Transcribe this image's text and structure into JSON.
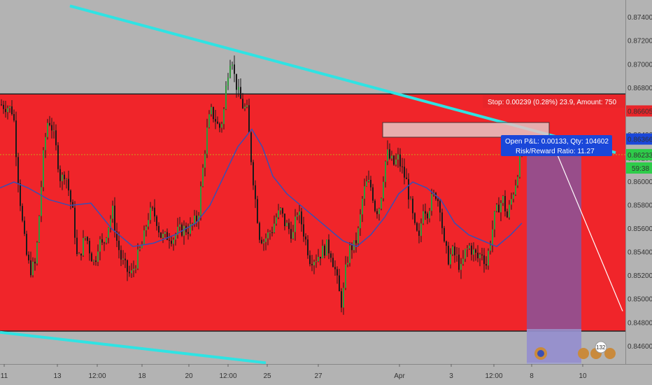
{
  "chart_data": {
    "type": "candlestick",
    "title": "",
    "y_axis": {
      "position": "right",
      "range": [
        0.8445,
        0.8755
      ],
      "tick_labels": [
        "0.87400",
        "0.87200",
        "0.87000",
        "0.86800",
        "0.86600",
        "0.86400",
        "0.86200",
        "0.86000",
        "0.85800",
        "0.85600",
        "0.85400",
        "0.85200",
        "0.85000",
        "0.84800",
        "0.84600"
      ]
    },
    "x_axis": {
      "tick_labels": [
        "11",
        "13",
        "12:00",
        "18",
        "20",
        "12:00",
        "25",
        "27",
        "Apr",
        "3",
        "12:00",
        "8",
        "10"
      ]
    },
    "series": [
      {
        "name": "",
        "type": "ohlc",
        "close_path": [
          [
            0,
            0.8666
          ],
          [
            10,
            0.8664
          ],
          [
            18,
            0.866
          ],
          [
            24,
            0.861
          ],
          [
            30,
            0.857
          ],
          [
            36,
            0.854
          ],
          [
            42,
            0.8525
          ],
          [
            50,
            0.853
          ],
          [
            56,
            0.858
          ],
          [
            62,
            0.863
          ],
          [
            68,
            0.8655
          ],
          [
            74,
            0.8645
          ],
          [
            80,
            0.8625
          ],
          [
            86,
            0.86
          ],
          [
            92,
            0.861
          ],
          [
            98,
            0.859
          ],
          [
            104,
            0.857
          ],
          [
            110,
            0.853
          ],
          [
            116,
            0.8545
          ],
          [
            122,
            0.8555
          ],
          [
            128,
            0.854
          ],
          [
            134,
            0.853
          ],
          [
            140,
            0.855
          ],
          [
            146,
            0.8545
          ],
          [
            152,
            0.856
          ],
          [
            160,
            0.8575
          ],
          [
            166,
            0.855
          ],
          [
            172,
            0.8535
          ],
          [
            180,
            0.8525
          ],
          [
            186,
            0.852
          ],
          [
            192,
            0.853
          ],
          [
            198,
            0.854
          ],
          [
            204,
            0.855
          ],
          [
            210,
            0.857
          ],
          [
            216,
            0.8575
          ],
          [
            222,
            0.857
          ],
          [
            228,
            0.8555
          ],
          [
            234,
            0.8552
          ],
          [
            240,
            0.8555
          ],
          [
            246,
            0.8552
          ],
          [
            254,
            0.8558
          ],
          [
            262,
            0.856
          ],
          [
            270,
            0.856
          ],
          [
            276,
            0.8565
          ],
          [
            282,
            0.857
          ],
          [
            288,
            0.8605
          ],
          [
            294,
            0.864
          ],
          [
            300,
            0.866
          ],
          [
            306,
            0.8655
          ],
          [
            312,
            0.8645
          ],
          [
            318,
            0.8655
          ],
          [
            322,
            0.868
          ],
          [
            326,
            0.87
          ],
          [
            330,
            0.871
          ],
          [
            334,
            0.869
          ],
          [
            340,
            0.8675
          ],
          [
            346,
            0.8665
          ],
          [
            352,
            0.866
          ],
          [
            358,
            0.862
          ],
          [
            364,
            0.8585
          ],
          [
            370,
            0.8555
          ],
          [
            376,
            0.855
          ],
          [
            382,
            0.8555
          ],
          [
            388,
            0.856
          ],
          [
            394,
            0.857
          ],
          [
            400,
            0.8575
          ],
          [
            406,
            0.8565
          ],
          [
            412,
            0.856
          ],
          [
            418,
            0.8555
          ],
          [
            424,
            0.8575
          ],
          [
            430,
            0.8565
          ],
          [
            436,
            0.855
          ],
          [
            442,
            0.8535
          ],
          [
            450,
            0.8535
          ],
          [
            458,
            0.854
          ],
          [
            466,
            0.8545
          ],
          [
            472,
            0.854
          ],
          [
            478,
            0.8525
          ],
          [
            484,
            0.8505
          ],
          [
            488,
            0.8495
          ],
          [
            494,
            0.853
          ],
          [
            500,
            0.8545
          ],
          [
            506,
            0.8545
          ],
          [
            512,
            0.856
          ],
          [
            518,
            0.859
          ],
          [
            524,
            0.86
          ],
          [
            530,
            0.8595
          ],
          [
            536,
            0.8575
          ],
          [
            542,
            0.858
          ],
          [
            548,
            0.861
          ],
          [
            552,
            0.8625
          ],
          [
            556,
            0.862
          ],
          [
            562,
            0.8615
          ],
          [
            568,
            0.862
          ],
          [
            574,
            0.861
          ],
          [
            580,
            0.86
          ],
          [
            586,
            0.858
          ],
          [
            592,
            0.856
          ],
          [
            598,
            0.855
          ],
          [
            604,
            0.858
          ],
          [
            610,
            0.8575
          ],
          [
            616,
            0.8585
          ],
          [
            622,
            0.859
          ],
          [
            628,
            0.858
          ],
          [
            634,
            0.8545
          ],
          [
            640,
            0.8535
          ],
          [
            646,
            0.854
          ],
          [
            652,
            0.8535
          ],
          [
            658,
            0.8525
          ],
          [
            664,
            0.854
          ],
          [
            670,
            0.8545
          ],
          [
            676,
            0.854
          ],
          [
            682,
            0.8535
          ],
          [
            688,
            0.854
          ],
          [
            694,
            0.853
          ],
          [
            700,
            0.855
          ],
          [
            706,
            0.857
          ],
          [
            712,
            0.858
          ],
          [
            718,
            0.8585
          ],
          [
            724,
            0.857
          ],
          [
            730,
            0.8585
          ],
          [
            736,
            0.86
          ],
          [
            742,
            0.862
          ],
          [
            746,
            0.8625
          ]
        ]
      },
      {
        "name": "",
        "type": "moving-average",
        "color": "#3a4fb3",
        "path": [
          [
            0,
            0.8595
          ],
          [
            20,
            0.86
          ],
          [
            40,
            0.8595
          ],
          [
            70,
            0.8585
          ],
          [
            100,
            0.858
          ],
          [
            130,
            0.8582
          ],
          [
            160,
            0.856
          ],
          [
            190,
            0.8545
          ],
          [
            220,
            0.8548
          ],
          [
            250,
            0.8555
          ],
          [
            280,
            0.8565
          ],
          [
            300,
            0.858
          ],
          [
            320,
            0.8605
          ],
          [
            340,
            0.863
          ],
          [
            360,
            0.8645
          ],
          [
            375,
            0.863
          ],
          [
            390,
            0.8605
          ],
          [
            410,
            0.859
          ],
          [
            430,
            0.858
          ],
          [
            450,
            0.857
          ],
          [
            470,
            0.856
          ],
          [
            490,
            0.855
          ],
          [
            510,
            0.8545
          ],
          [
            530,
            0.8555
          ],
          [
            550,
            0.857
          ],
          [
            570,
            0.859
          ],
          [
            590,
            0.86
          ],
          [
            610,
            0.8595
          ],
          [
            630,
            0.8585
          ],
          [
            650,
            0.8565
          ],
          [
            670,
            0.8555
          ],
          [
            690,
            0.855
          ],
          [
            710,
            0.8545
          ],
          [
            730,
            0.8555
          ],
          [
            746,
            0.8565
          ]
        ]
      }
    ],
    "trendlines": [
      {
        "color": "#2fe3e3",
        "from": [
          100,
          0.875
        ],
        "to": [
          880,
          0.8625
        ]
      },
      {
        "color": "#2fe3e3",
        "from": [
          0,
          0.8472
        ],
        "to": [
          380,
          0.8446
        ]
      },
      {
        "color": "#ffffff",
        "from": [
          785,
          0.864
        ],
        "to": [
          890,
          0.849
        ]
      }
    ],
    "range_box": {
      "color": "#f0252a",
      "price_top": 0.8675,
      "price_bottom": 0.8473
    },
    "overlays": {
      "stop_label": "Stop: 0.00239 (0.28%) 23.9, Amount: 750",
      "pnl_label": "Open P&L: 0.00133, Qty: 104602",
      "risk_label": "Risk/Reward Ratio: 11.27",
      "marker_count": "132"
    },
    "price_badges": [
      {
        "price": 0.86605,
        "text": "0.86605",
        "color": "#e8252a",
        "text_color": "#ffffff"
      },
      {
        "price": 0.86366,
        "text": "0.86366",
        "color": "#1a47d9",
        "text_color": "#ffffff"
      },
      {
        "price": 0.86233,
        "text": "0.86233",
        "color": "#2ecc4a",
        "text_color": "#111111"
      }
    ],
    "countdown": "59:38",
    "current_price_line": 0.86233,
    "grid": false
  }
}
